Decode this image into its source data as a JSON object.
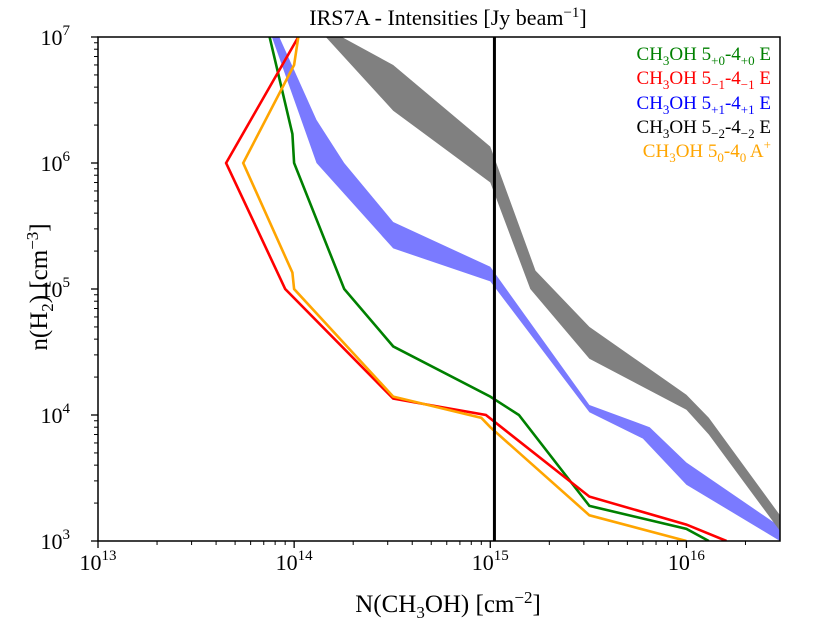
{
  "chart_data": {
    "type": "line",
    "title": "IRS7A - Intensities [Jy beam⁻¹]",
    "xlabel": "N(CH3OH) [cm⁻²]",
    "ylabel": "n(H2) [cm⁻³]",
    "x_scale": "log",
    "y_scale": "log",
    "xlim": [
      10000000000000.0,
      3e+16
    ],
    "ylim": [
      1000.0,
      10000000.0
    ],
    "x_ticks": [
      {
        "value": 10000000000000.0,
        "base": "10",
        "exp": "13"
      },
      {
        "value": 100000000000000.0,
        "base": "10",
        "exp": "14"
      },
      {
        "value": 1000000000000000.0,
        "base": "10",
        "exp": "15"
      },
      {
        "value": 1e+16,
        "base": "10",
        "exp": "16"
      }
    ],
    "y_ticks": [
      {
        "value": 1000.0,
        "base": "10",
        "exp": "3"
      },
      {
        "value": 10000.0,
        "base": "10",
        "exp": "4"
      },
      {
        "value": 100000.0,
        "base": "10",
        "exp": "5"
      },
      {
        "value": 1000000.0,
        "base": "10",
        "exp": "6"
      },
      {
        "value": 10000000.0,
        "base": "10",
        "exp": "7"
      }
    ],
    "vertical_line": {
      "x": 1050000000000000.0,
      "color": "#000000"
    },
    "series": [
      {
        "name": "CH3OH 5+0-4+0 E",
        "type": "line",
        "color": "#008000",
        "points": [
          [
            75000000000000.0,
            10000000.0
          ],
          [
            98000000000000.0,
            1700000.0
          ],
          [
            100000000000000.0,
            1000000.0
          ],
          [
            180000000000000.0,
            100000.0
          ],
          [
            320000000000000.0,
            35000.0
          ],
          [
            1000000000000000.0,
            14000.0
          ],
          [
            1400000000000000.0,
            10000.0
          ],
          [
            3200000000000000.0,
            1900.0
          ],
          [
            1e+16,
            1250.0
          ],
          [
            1.3e+16,
            1000.0
          ]
        ]
      },
      {
        "name": "CH3OH 5−1-4−1 E",
        "type": "line",
        "color": "#ff0000",
        "points": [
          [
            105000000000000.0,
            10000000.0
          ],
          [
            45000000000000.0,
            1000000.0
          ],
          [
            90000000000000.0,
            100000.0
          ],
          [
            320000000000000.0,
            13500.0
          ],
          [
            950000000000000.0,
            10000.0
          ],
          [
            1200000000000000.0,
            7500.0
          ],
          [
            3200000000000000.0,
            2250.0
          ],
          [
            1e+16,
            1350.0
          ],
          [
            1.6e+16,
            1000.0
          ]
        ]
      },
      {
        "name": "CH3OH 5+1-4+1 E",
        "type": "band",
        "color": "#7a7aff",
        "upper": [
          [
            84000000000000.0,
            10000000.0
          ],
          [
            130000000000000.0,
            2200000.0
          ],
          [
            180000000000000.0,
            1000000.0
          ],
          [
            320000000000000.0,
            340000.0
          ],
          [
            1000000000000000.0,
            150000.0
          ],
          [
            3200000000000000.0,
            12000.0
          ],
          [
            6500000000000000.0,
            8000.0
          ],
          [
            1e+16,
            4200.0
          ],
          [
            3e+16,
            1300.0
          ]
        ],
        "lower": [
          [
            77000000000000.0,
            10000000.0
          ],
          [
            130000000000000.0,
            1000000.0
          ],
          [
            320000000000000.0,
            210000.0
          ],
          [
            1000000000000000.0,
            115000.0
          ],
          [
            3200000000000000.0,
            10500.0
          ],
          [
            6000000000000000.0,
            6500.0
          ],
          [
            1e+16,
            2800.0
          ],
          [
            3e+16,
            1000.0
          ]
        ]
      },
      {
        "name": "CH3OH 5−2-4−2 E",
        "type": "band",
        "color": "#808080",
        "upper": [
          [
            175000000000000.0,
            10000000.0
          ],
          [
            320000000000000.0,
            6000000.0
          ],
          [
            1000000000000000.0,
            1350000.0
          ],
          [
            1700000000000000.0,
            140000.0
          ],
          [
            3200000000000000.0,
            50000.0
          ],
          [
            1e+16,
            14500.0
          ],
          [
            1.3e+16,
            9500.0
          ],
          [
            3e+16,
            1600.0
          ]
        ],
        "lower": [
          [
            145000000000000.0,
            10000000.0
          ],
          [
            320000000000000.0,
            2600000.0
          ],
          [
            1000000000000000.0,
            700000.0
          ],
          [
            1600000000000000.0,
            100000.0
          ],
          [
            3200000000000000.0,
            28000.0
          ],
          [
            1e+16,
            11000.0
          ],
          [
            1.3e+16,
            7000.0
          ],
          [
            3e+16,
            1200.0
          ]
        ]
      },
      {
        "name": "CH3OH 50-40 A+",
        "type": "line",
        "color": "#ffa500",
        "points": [
          [
            105000000000000.0,
            10000000.0
          ],
          [
            100000000000000.0,
            6000000.0
          ],
          [
            55000000000000.0,
            1000000.0
          ],
          [
            98000000000000.0,
            135000.0
          ],
          [
            100000000000000.0,
            100000.0
          ],
          [
            320000000000000.0,
            14000.0
          ],
          [
            900000000000000.0,
            9500.0
          ],
          [
            1000000000000000.0,
            8000.0
          ],
          [
            3200000000000000.0,
            1600.0
          ],
          [
            1e+16,
            1000.0
          ]
        ]
      }
    ],
    "legend": {
      "position": "top-right",
      "entries": [
        {
          "color": "#008000",
          "base": "CH",
          "sub1": "3",
          "mid": "OH 5",
          "sub2": "+0",
          "dash": "-4",
          "sub3": "+0",
          "tail": " E",
          "sup": ""
        },
        {
          "color": "#ff0000",
          "base": "CH",
          "sub1": "3",
          "mid": "OH 5",
          "sub2": "−1",
          "dash": "-4",
          "sub3": "−1",
          "tail": " E",
          "sup": ""
        },
        {
          "color": "#0000ff",
          "base": "CH",
          "sub1": "3",
          "mid": "OH 5",
          "sub2": "+1",
          "dash": "-4",
          "sub3": "+1",
          "tail": " E",
          "sup": ""
        },
        {
          "color": "#000000",
          "base": "CH",
          "sub1": "3",
          "mid": "OH 5",
          "sub2": "−2",
          "dash": "-4",
          "sub3": "−2",
          "tail": " E",
          "sup": ""
        },
        {
          "color": "#ffa500",
          "base": "CH",
          "sub1": "3",
          "mid": "OH 5",
          "sub2": "0",
          "dash": "-4",
          "sub3": "0",
          "tail": " A",
          "sup": "+"
        }
      ]
    }
  }
}
